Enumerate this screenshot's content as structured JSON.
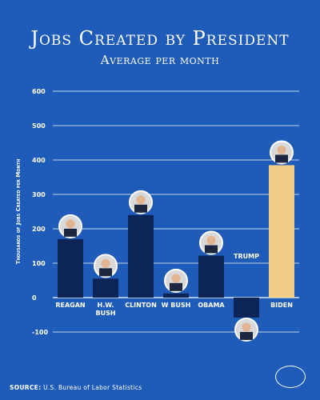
{
  "header": {
    "title": "Jobs Created by President",
    "subtitle": "Average per month"
  },
  "source": {
    "label": "SOURCE:",
    "text": "U.S. Bureau of Labor Statistics"
  },
  "logo_icon": "white-house-seal-icon",
  "colors": {
    "background": "#1f5bb8",
    "bar": "#0d2457",
    "highlight_bar": "#f0cd86",
    "grid": "#ffffff"
  },
  "chart_data": {
    "type": "bar",
    "ylabel": "Thousands of Jobs Created per Month",
    "ylim": [
      -100,
      600
    ],
    "yticks": [
      -100,
      0,
      100,
      200,
      300,
      400,
      500,
      600
    ],
    "grid": true,
    "categories": [
      "REAGAN",
      "H.W. BUSH",
      "CLINTON",
      "W BUSH",
      "OBAMA",
      "TRUMP",
      "BIDEN"
    ],
    "values": [
      170,
      55,
      240,
      12,
      122,
      -58,
      385
    ],
    "highlight": "BIDEN"
  }
}
